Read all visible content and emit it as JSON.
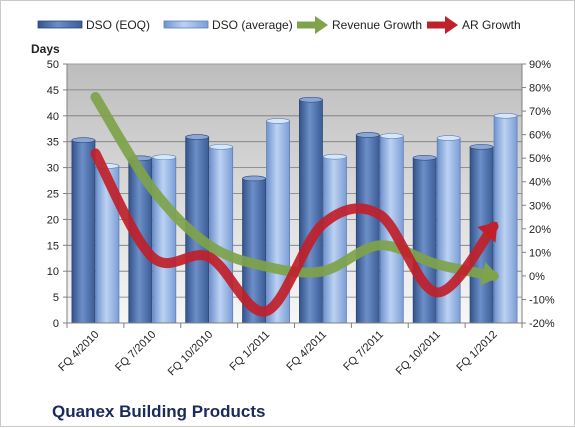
{
  "chart_data": {
    "type": "bar",
    "title": "Quanex Building Products",
    "y_title": "Days",
    "categories": [
      "FQ 4/2010",
      "FQ 7/2010",
      "FQ 10/2010",
      "FQ 1/2011",
      "FQ 4/2011",
      "FQ 7/2011",
      "FQ 10/2011",
      "FQ 1/2012"
    ],
    "ylim": [
      0,
      50
    ],
    "y_ticks": [
      "0",
      "5",
      "10",
      "15",
      "20",
      "25",
      "30",
      "35",
      "40",
      "45",
      "50"
    ],
    "y2lim": [
      -0.2,
      0.9
    ],
    "y2_ticks": [
      "-20%",
      "-10%",
      "0%",
      "10%",
      "20%",
      "30%",
      "40%",
      "50%",
      "60%",
      "70%",
      "80%",
      "90%"
    ],
    "grid": true,
    "legend_position": "top",
    "series": [
      {
        "name": "DSO (EOQ)",
        "kind": "bar",
        "axis": "left",
        "color": "#4f6fa8",
        "values": [
          35.3,
          31.8,
          35.9,
          27.9,
          43.1,
          36.3,
          31.9,
          34.0
        ]
      },
      {
        "name": "DSO (average)",
        "kind": "bar",
        "axis": "left",
        "color": "#95b3e0",
        "values": [
          30.3,
          32.0,
          34.0,
          39.0,
          32.1,
          36.1,
          35.7,
          40.0
        ]
      },
      {
        "name": "Revenue Growth",
        "kind": "line",
        "axis": "right",
        "color": "#7ea34a",
        "values": [
          0.76,
          0.37,
          0.13,
          0.04,
          0.02,
          0.13,
          0.05,
          0.0
        ]
      },
      {
        "name": "AR Growth",
        "kind": "line",
        "axis": "right",
        "color": "#c0202a",
        "values": [
          0.52,
          0.08,
          0.08,
          -0.15,
          0.22,
          0.26,
          -0.07,
          0.21
        ]
      }
    ]
  }
}
